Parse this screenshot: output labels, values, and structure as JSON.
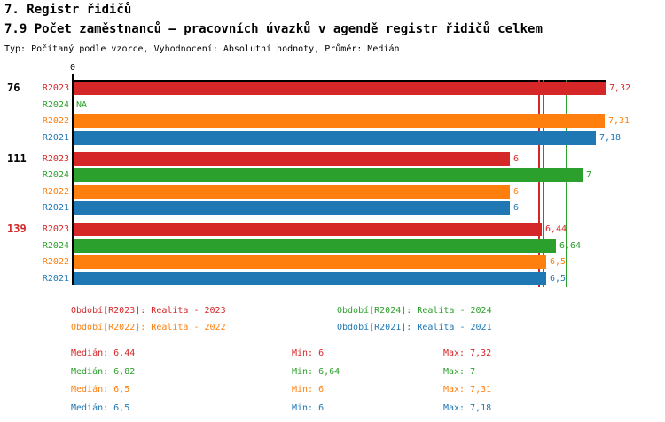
{
  "header": {
    "title1": "7. Registr řidičů",
    "title2": "7.9 Počet zaměstnanců – pracovních úvazků v agendě registr řidičů celkem",
    "type_line": "Typ: Počítaný podle vzorce, Vyhodnocení: Absolutní hodnoty, Průměr: Medián"
  },
  "palette": {
    "R2023": "#d62728",
    "R2024": "#2ca02c",
    "R2022": "#ff7f0e",
    "R2021": "#1f77b4",
    "axis": "#000000"
  },
  "chart_data": {
    "type": "bar",
    "orientation": "horizontal",
    "value_axis": {
      "zero_label": "0",
      "min": 0,
      "max_visible": 7.35,
      "grid": false
    },
    "series_order": [
      "R2023",
      "R2024",
      "R2022",
      "R2021"
    ],
    "groups": [
      {
        "label": "76",
        "label_color": "#000000",
        "bars": [
          {
            "series": "R2023",
            "value": 7.32,
            "display": "7,32"
          },
          {
            "series": "R2024",
            "value": null,
            "display": "NA"
          },
          {
            "series": "R2022",
            "value": 7.31,
            "display": "7,31"
          },
          {
            "series": "R2021",
            "value": 7.18,
            "display": "7,18"
          }
        ]
      },
      {
        "label": "111",
        "label_color": "#000000",
        "bars": [
          {
            "series": "R2023",
            "value": 6,
            "display": "6"
          },
          {
            "series": "R2024",
            "value": 7,
            "display": "7"
          },
          {
            "series": "R2022",
            "value": 6,
            "display": "6"
          },
          {
            "series": "R2021",
            "value": 6,
            "display": "6"
          }
        ]
      },
      {
        "label": "139",
        "label_color": "#d62728",
        "bars": [
          {
            "series": "R2023",
            "value": 6.44,
            "display": "6,44"
          },
          {
            "series": "R2024",
            "value": 6.64,
            "display": "6,64"
          },
          {
            "series": "R2022",
            "value": 6.5,
            "display": "6,5"
          },
          {
            "series": "R2021",
            "value": 6.5,
            "display": "6,5"
          }
        ]
      }
    ],
    "median_lines": [
      {
        "series": "R2023",
        "value": 6.44,
        "color": "#d62728"
      },
      {
        "series": "R2022",
        "value": 6.5,
        "color": "#ff7f0e"
      },
      {
        "series": "R2021",
        "value": 6.5,
        "color": "#1f77b4"
      },
      {
        "series": "R2024",
        "value": 6.82,
        "color": "#2ca02c"
      }
    ]
  },
  "legend": {
    "items": [
      {
        "series": "R2023",
        "label": "Období[R2023]: Realita - 2023",
        "color": "#d62728"
      },
      {
        "series": "R2024",
        "label": "Období[R2024]: Realita - 2024",
        "color": "#2ca02c"
      },
      {
        "series": "R2022",
        "label": "Období[R2022]: Realita - 2022",
        "color": "#ff7f0e"
      },
      {
        "series": "R2021",
        "label": "Období[R2021]: Realita - 2021",
        "color": "#1f77b4"
      }
    ]
  },
  "stats": {
    "rows": [
      {
        "series": "R2023",
        "color": "#d62728",
        "median": "Medián: 6,44",
        "min": "Min: 6",
        "max": "Max: 7,32"
      },
      {
        "series": "R2024",
        "color": "#2ca02c",
        "median": "Medián: 6,82",
        "min": "Min: 6,64",
        "max": "Max: 7"
      },
      {
        "series": "R2022",
        "color": "#ff7f0e",
        "median": "Medián: 6,5",
        "min": "Min: 6",
        "max": "Max: 7,31"
      },
      {
        "series": "R2021",
        "color": "#1f77b4",
        "median": "Medián: 6,5",
        "min": "Min: 6",
        "max": "Max: 7,18"
      }
    ]
  }
}
